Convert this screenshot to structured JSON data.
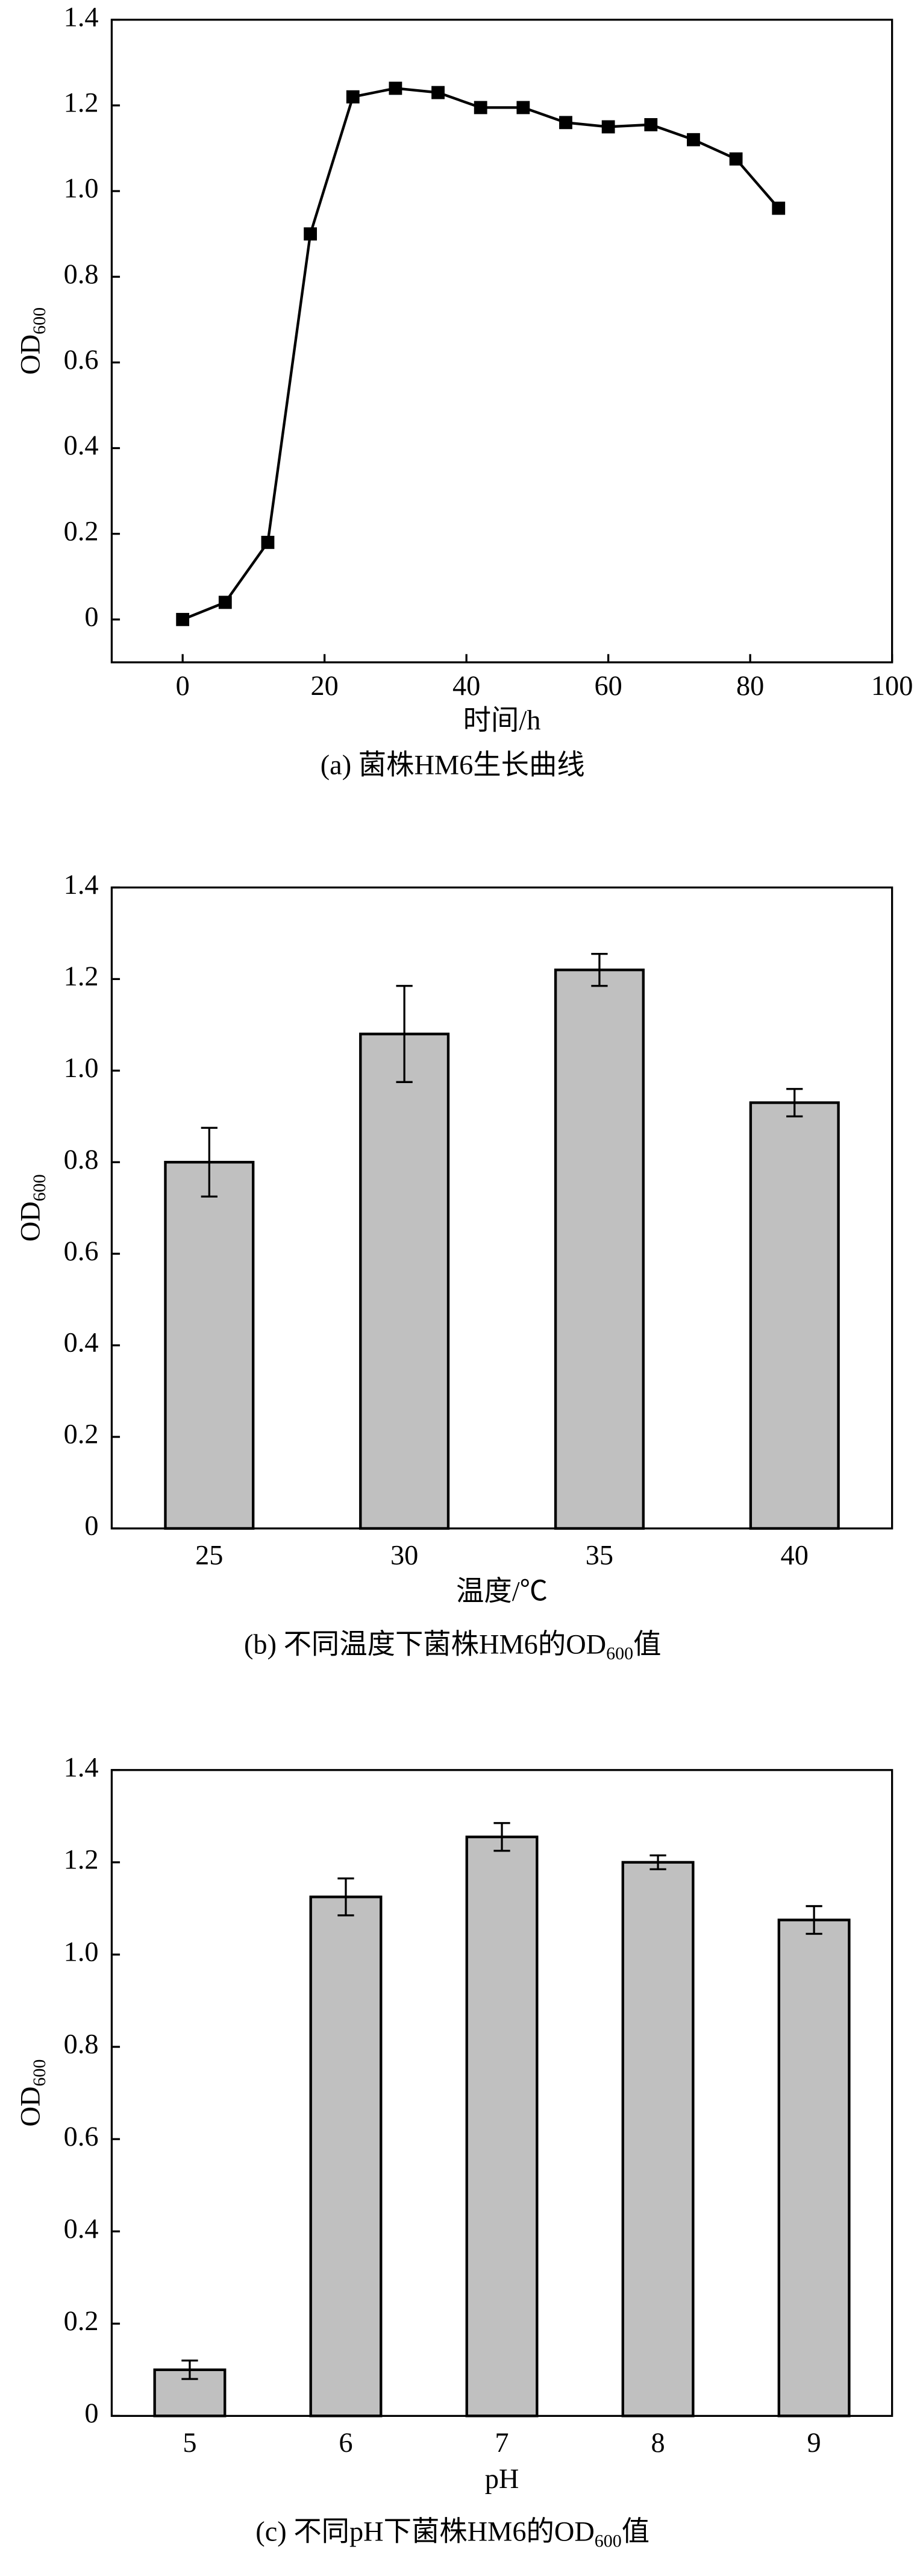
{
  "chart_data": [
    {
      "type": "line",
      "x_label": "时间/h",
      "y_label": "OD",
      "y_label_sub": "600",
      "caption": "(a) 菌株HM6生长曲线",
      "x": [
        0,
        6,
        12,
        18,
        24,
        30,
        36,
        42,
        48,
        54,
        60,
        66,
        72,
        78,
        84
      ],
      "values": [
        0,
        0.04,
        0.18,
        0.9,
        1.22,
        1.24,
        1.23,
        1.195,
        1.195,
        1.16,
        1.15,
        1.155,
        1.12,
        1.075,
        0.96
      ],
      "color": "#000000",
      "xlim": [
        -10,
        100
      ],
      "xticks": [
        0,
        20,
        40,
        60,
        80,
        100
      ],
      "ylim": [
        -0.1,
        1.4
      ],
      "yticks": [
        0,
        0.2,
        0.4,
        0.6,
        0.8,
        {
          "value": 1,
          "label": "1.0"
        },
        1.2,
        1.4
      ]
    },
    {
      "type": "bar",
      "x_label": "温度/℃",
      "y_label": "OD",
      "y_label_sub": "600",
      "caption": "(b) 不同温度下菌株HM6的OD",
      "caption_sub": "600",
      "caption_end": "值",
      "categories": [
        "25",
        "30",
        "35",
        "40"
      ],
      "values": [
        0.8,
        1.08,
        1.22,
        0.93
      ],
      "errors": [
        0.075,
        0.105,
        0.035,
        0.03
      ],
      "color": "#c0c0c0",
      "ylim": [
        0,
        1.4
      ],
      "yticks": [
        0,
        0.2,
        0.4,
        0.6,
        0.8,
        {
          "value": 1,
          "label": "1.0"
        },
        1.2,
        1.4
      ]
    },
    {
      "type": "bar",
      "x_label": "pH",
      "y_label": "OD",
      "y_label_sub": "600",
      "caption": "(c) 不同pH下菌株HM6的OD",
      "caption_sub": "600",
      "caption_end": "值",
      "categories": [
        "5",
        "6",
        "7",
        "8",
        "9"
      ],
      "values": [
        0.1,
        1.125,
        1.255,
        1.2,
        1.075
      ],
      "errors": [
        0.02,
        0.04,
        0.03,
        0.015,
        0.03
      ],
      "color": "#c0c0c0",
      "ylim": [
        0,
        1.4
      ],
      "yticks": [
        0,
        0.2,
        0.4,
        0.6,
        0.8,
        {
          "value": 1,
          "label": "1.0"
        },
        1.2,
        1.4
      ]
    }
  ]
}
